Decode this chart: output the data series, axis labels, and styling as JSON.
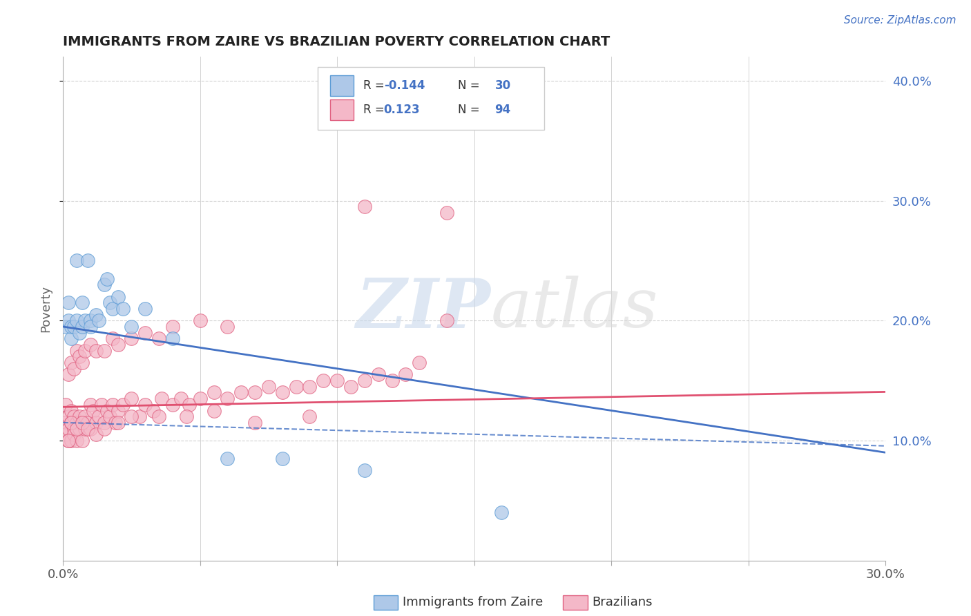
{
  "title": "IMMIGRANTS FROM ZAIRE VS BRAZILIAN POVERTY CORRELATION CHART",
  "source_text": "Source: ZipAtlas.com",
  "ylabel": "Poverty",
  "xlim": [
    0.0,
    0.3
  ],
  "ylim": [
    0.0,
    0.42
  ],
  "xticks": [
    0.0,
    0.05,
    0.1,
    0.15,
    0.2,
    0.25,
    0.3
  ],
  "yticks": [
    0.1,
    0.2,
    0.3,
    0.4
  ],
  "ytick_labels": [
    "10.0%",
    "20.0%",
    "30.0%",
    "40.0%"
  ],
  "background_color": "#ffffff",
  "grid_color": "#cccccc",
  "watermark_zip": "ZIP",
  "watermark_atlas": "atlas",
  "blue_fill": "#aec8e8",
  "blue_edge": "#5b9bd5",
  "pink_fill": "#f4b8c8",
  "pink_edge": "#e06080",
  "trend_blue_color": "#4472c4",
  "trend_pink_color": "#e05070",
  "blue_slope": -0.35,
  "blue_intercept": 0.195,
  "pink_slope": 0.042,
  "pink_intercept": 0.128,
  "blue_dashed_slope": -0.065,
  "blue_dashed_intercept": 0.115,
  "zaire_x": [
    0.001,
    0.002,
    0.002,
    0.003,
    0.003,
    0.004,
    0.005,
    0.005,
    0.006,
    0.007,
    0.007,
    0.008,
    0.009,
    0.01,
    0.01,
    0.012,
    0.013,
    0.015,
    0.016,
    0.017,
    0.018,
    0.02,
    0.022,
    0.025,
    0.03,
    0.04,
    0.06,
    0.08,
    0.11,
    0.16
  ],
  "zaire_y": [
    0.195,
    0.2,
    0.215,
    0.185,
    0.195,
    0.195,
    0.2,
    0.25,
    0.19,
    0.215,
    0.195,
    0.2,
    0.25,
    0.2,
    0.195,
    0.205,
    0.2,
    0.23,
    0.235,
    0.215,
    0.21,
    0.22,
    0.21,
    0.195,
    0.21,
    0.185,
    0.085,
    0.085,
    0.075,
    0.04
  ],
  "brazil_x": [
    0.001,
    0.001,
    0.001,
    0.002,
    0.002,
    0.002,
    0.003,
    0.003,
    0.003,
    0.004,
    0.004,
    0.004,
    0.005,
    0.005,
    0.006,
    0.006,
    0.007,
    0.007,
    0.008,
    0.008,
    0.009,
    0.01,
    0.01,
    0.011,
    0.012,
    0.013,
    0.014,
    0.015,
    0.016,
    0.017,
    0.018,
    0.019,
    0.02,
    0.022,
    0.025,
    0.028,
    0.03,
    0.033,
    0.036,
    0.04,
    0.043,
    0.046,
    0.05,
    0.055,
    0.06,
    0.065,
    0.07,
    0.075,
    0.08,
    0.085,
    0.09,
    0.095,
    0.1,
    0.105,
    0.11,
    0.115,
    0.12,
    0.125,
    0.13,
    0.14,
    0.002,
    0.003,
    0.004,
    0.005,
    0.006,
    0.007,
    0.008,
    0.01,
    0.012,
    0.015,
    0.018,
    0.02,
    0.025,
    0.03,
    0.035,
    0.04,
    0.05,
    0.06,
    0.002,
    0.003,
    0.005,
    0.007,
    0.009,
    0.012,
    0.015,
    0.02,
    0.025,
    0.035,
    0.045,
    0.055,
    0.07,
    0.09,
    0.11,
    0.14
  ],
  "brazil_y": [
    0.13,
    0.115,
    0.105,
    0.12,
    0.11,
    0.1,
    0.125,
    0.115,
    0.1,
    0.12,
    0.11,
    0.105,
    0.115,
    0.1,
    0.12,
    0.11,
    0.115,
    0.1,
    0.12,
    0.11,
    0.115,
    0.13,
    0.11,
    0.125,
    0.115,
    0.12,
    0.13,
    0.115,
    0.125,
    0.12,
    0.13,
    0.115,
    0.125,
    0.13,
    0.135,
    0.12,
    0.13,
    0.125,
    0.135,
    0.13,
    0.135,
    0.13,
    0.135,
    0.14,
    0.135,
    0.14,
    0.14,
    0.145,
    0.14,
    0.145,
    0.145,
    0.15,
    0.15,
    0.145,
    0.15,
    0.155,
    0.15,
    0.155,
    0.165,
    0.2,
    0.155,
    0.165,
    0.16,
    0.175,
    0.17,
    0.165,
    0.175,
    0.18,
    0.175,
    0.175,
    0.185,
    0.18,
    0.185,
    0.19,
    0.185,
    0.195,
    0.2,
    0.195,
    0.1,
    0.115,
    0.11,
    0.115,
    0.11,
    0.105,
    0.11,
    0.115,
    0.12,
    0.12,
    0.12,
    0.125,
    0.115,
    0.12,
    0.295,
    0.29
  ]
}
